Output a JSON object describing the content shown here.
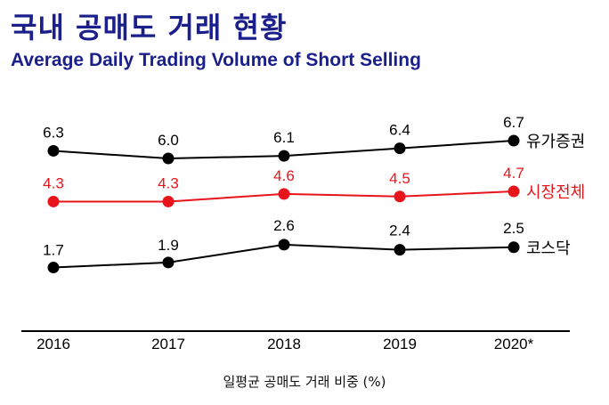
{
  "header": {
    "title": "국내 공매도 거래 현황",
    "subtitle": "Average Daily Trading Volume of Short Selling"
  },
  "chart_data": {
    "type": "line",
    "title": "국내 공매도 거래 현황",
    "subtitle": "Average Daily Trading Volume of Short Selling",
    "xlabel": "일평균 공매도 거래 비중 (%)",
    "ylabel": "",
    "categories": [
      "2016",
      "2017",
      "2018",
      "2019",
      "2020*"
    ],
    "series": [
      {
        "name": "유가증권",
        "values": [
          6.3,
          6.0,
          6.1,
          6.4,
          6.7
        ],
        "value_labels": [
          "6.3",
          "6.0",
          "6.1",
          "6.4",
          "6.7"
        ],
        "color": "#000000"
      },
      {
        "name": "시장전체",
        "values": [
          4.3,
          4.3,
          4.6,
          4.5,
          4.7
        ],
        "value_labels": [
          "4.3",
          "4.3",
          "4.6",
          "4.5",
          "4.7"
        ],
        "color": "#e8141b"
      },
      {
        "name": "코스닥",
        "values": [
          1.7,
          1.9,
          2.6,
          2.4,
          2.5
        ],
        "value_labels": [
          "1.7",
          "1.9",
          "2.6",
          "2.4",
          "2.5"
        ],
        "color": "#000000"
      }
    ],
    "ylim": [
      0,
      7.8
    ],
    "grid": false,
    "legend": "end-of-line labels"
  }
}
